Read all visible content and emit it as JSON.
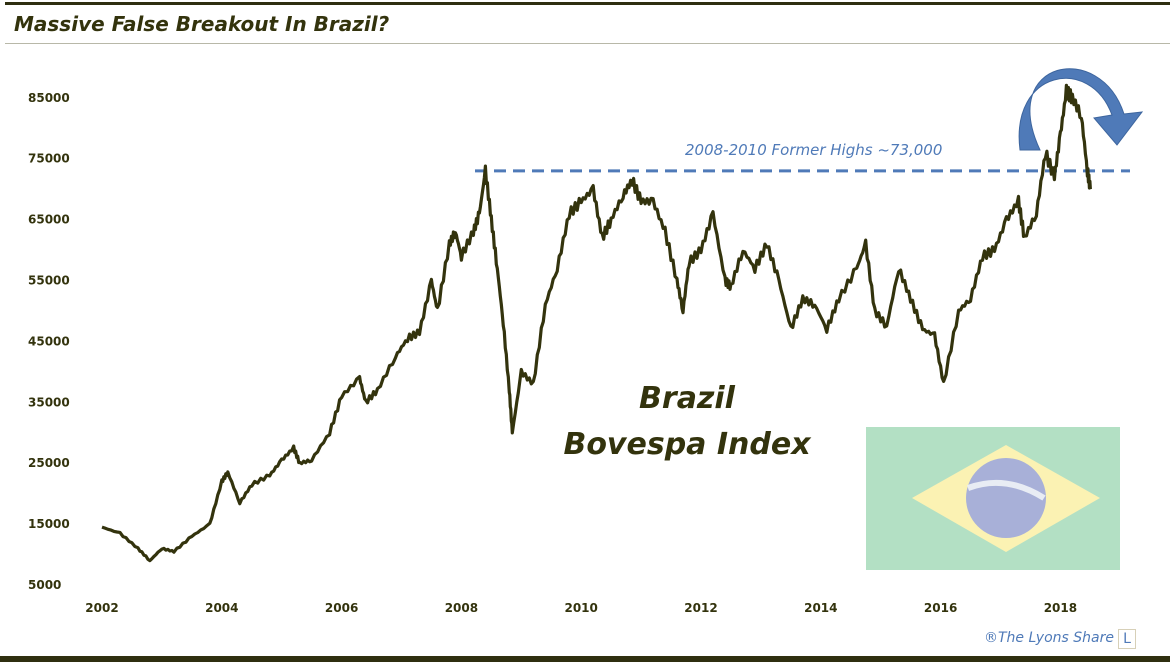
{
  "title": "Massive False Breakout In Brazil?",
  "credit": "®The Lyons Share",
  "logo_letter": "L",
  "chart_data": {
    "type": "line",
    "title": "Massive False Breakout In Brazil?",
    "annotation_center": [
      "Brazil",
      "Bovespa Index"
    ],
    "reference_line": {
      "label": "2008-2010 Former Highs ~73,000",
      "value": 73000,
      "style": "dashed",
      "color": "#4f7ab8"
    },
    "xlim": [
      2002,
      2019
    ],
    "ylim": [
      5000,
      90000
    ],
    "x_ticks": [
      "2002",
      "2004",
      "2006",
      "2008",
      "2010",
      "2012",
      "2014",
      "2016",
      "2018"
    ],
    "y_ticks": [
      "85000",
      "75000",
      "65000",
      "55000",
      "45000",
      "35000",
      "25000",
      "15000",
      "5000"
    ],
    "grid": false,
    "line_color": "#33330d",
    "series": [
      {
        "x": [
          2002.0,
          2002.3,
          2002.6,
          2002.8,
          2003.0,
          2003.2,
          2003.5,
          2003.8,
          2004.0,
          2004.1,
          2004.3,
          2004.5,
          2004.8,
          2005.0,
          2005.2,
          2005.3,
          2005.5,
          2005.8,
          2006.0,
          2006.3,
          2006.4,
          2006.6,
          2006.9,
          2007.1,
          2007.3,
          2007.5,
          2007.6,
          2007.8,
          2007.9,
          2008.0,
          2008.2,
          2008.3,
          2008.4,
          2008.5,
          2008.6,
          2008.7,
          2008.8,
          2008.85,
          2009.0,
          2009.2,
          2009.4,
          2009.6,
          2009.8,
          2010.0,
          2010.2,
          2010.35,
          2010.5,
          2010.7,
          2010.85,
          2011.0,
          2011.2,
          2011.4,
          2011.6,
          2011.7,
          2011.8,
          2012.0,
          2012.2,
          2012.4,
          2012.5,
          2012.7,
          2012.9,
          2013.1,
          2013.3,
          2013.5,
          2013.7,
          2013.9,
          2014.1,
          2014.3,
          2014.6,
          2014.75,
          2014.9,
          2015.1,
          2015.3,
          2015.5,
          2015.7,
          2015.9,
          2016.05,
          2016.3,
          2016.5,
          2016.7,
          2016.9,
          2017.1,
          2017.3,
          2017.4,
          2017.6,
          2017.75,
          2017.9,
          2018.0,
          2018.1,
          2018.2,
          2018.35,
          2018.45,
          2018.5
        ],
        "y": [
          14500,
          13500,
          11000,
          9000,
          11000,
          10500,
          13000,
          15000,
          22000,
          23500,
          18500,
          21500,
          23000,
          25500,
          27500,
          25000,
          25500,
          30000,
          36000,
          39000,
          35000,
          37000,
          42500,
          45500,
          46500,
          55000,
          50000,
          61000,
          63000,
          59000,
          63000,
          66000,
          73000,
          65000,
          57000,
          48000,
          37000,
          30000,
          40000,
          38000,
          51000,
          57000,
          66000,
          68000,
          70000,
          62000,
          65000,
          69000,
          71500,
          68000,
          68000,
          63000,
          55000,
          50000,
          58000,
          60000,
          66000,
          55000,
          54000,
          60000,
          57000,
          61000,
          55000,
          47000,
          52000,
          51000,
          47000,
          52000,
          57000,
          61000,
          50000,
          47500,
          57000,
          52000,
          47000,
          46000,
          38000,
          50000,
          52000,
          59000,
          60000,
          65000,
          68000,
          62000,
          66000,
          76000,
          72000,
          79000,
          86000,
          85000,
          82000,
          73000,
          70000
        ]
      }
    ]
  },
  "flag": {
    "colors": {
      "field": "#b3e0c4",
      "diamond": "#fbf2b3",
      "globe": "#a8b0d8",
      "band": "#e8ecf4"
    }
  },
  "arrow_color": "#4f7ab8"
}
